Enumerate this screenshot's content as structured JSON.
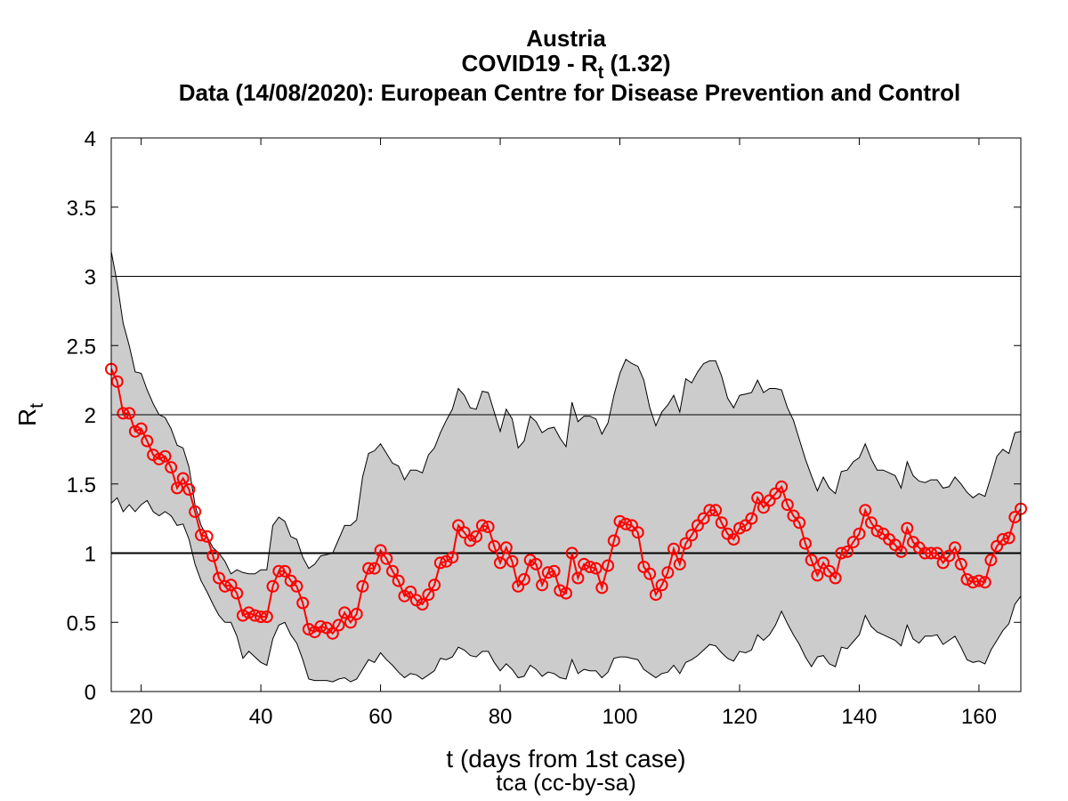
{
  "header": {
    "country": "Austria",
    "metric_prefix": "COVID19 - R",
    "metric_sub": "t",
    "metric_value": " (1.32)",
    "source": "Data (14/08/2020): European Centre for Disease Prevention and Control"
  },
  "axes": {
    "x_label": "t (days from 1st case)",
    "y_label_main": "R",
    "y_label_sub": "t",
    "credit": "tca (cc-by-sa)"
  },
  "colors": {
    "series": "#ff0000",
    "band": "#cccccc",
    "band_edge": "#000000",
    "reference": "#000000"
  },
  "chart_data": {
    "type": "line",
    "title": "Austria / COVID19 - Rt (1.32) / Data (14/08/2020): European Centre for Disease Prevention and Control",
    "xlabel": "t (days from 1st case)",
    "ylabel": "Rt",
    "xlim": [
      15,
      167
    ],
    "ylim": [
      0,
      4
    ],
    "x_ticks": [
      20,
      40,
      60,
      80,
      100,
      120,
      140,
      160
    ],
    "x_tick_labels": [
      "20",
      "40",
      "60",
      "80",
      "100",
      "120",
      "140",
      "160"
    ],
    "y_ticks": [
      0,
      0.5,
      1,
      1.5,
      2,
      2.5,
      3,
      3.5,
      4
    ],
    "y_tick_labels": [
      "0",
      "0.5",
      "1",
      "1.5",
      "2",
      "2.5",
      "3",
      "3.5",
      "4"
    ],
    "reference_lines": [
      1,
      2,
      3
    ],
    "legend": "none",
    "series": [
      {
        "x": [
          15,
          16,
          17,
          18,
          19,
          20,
          21,
          22,
          23,
          24,
          25,
          26,
          27,
          28,
          29,
          30,
          31,
          32,
          33,
          34,
          35,
          36,
          37,
          38,
          39,
          40,
          41,
          42,
          43,
          44,
          45,
          46,
          47,
          48,
          49,
          50,
          51,
          52,
          53,
          54,
          55,
          56,
          57,
          58,
          59,
          60,
          61,
          62,
          63,
          64,
          65,
          66,
          67,
          68,
          69,
          70,
          71,
          72,
          73,
          74,
          75,
          76,
          77,
          78,
          79,
          80,
          81,
          82,
          83,
          84,
          85,
          86,
          87,
          88,
          89,
          90,
          91,
          92,
          93,
          94,
          95,
          96,
          97,
          98,
          99,
          100,
          101,
          102,
          103,
          104,
          105,
          106,
          107,
          108,
          109,
          110,
          111,
          112,
          113,
          114,
          115,
          116,
          117,
          118,
          119,
          120,
          121,
          122,
          123,
          124,
          125,
          126,
          127,
          128,
          129,
          130,
          131,
          132,
          133,
          134,
          135,
          136,
          137,
          138,
          139,
          140,
          141,
          142,
          143,
          144,
          145,
          146,
          147,
          148,
          149,
          150,
          151,
          152,
          153,
          154,
          155,
          156,
          157,
          158,
          159,
          160,
          161,
          162,
          163,
          164,
          165,
          166,
          167
        ],
        "values": [
          2.33,
          2.24,
          2.01,
          2.01,
          1.88,
          1.9,
          1.81,
          1.71,
          1.68,
          1.7,
          1.62,
          1.47,
          1.54,
          1.46,
          1.3,
          1.13,
          1.12,
          0.98,
          0.82,
          0.76,
          0.77,
          0.71,
          0.55,
          0.57,
          0.55,
          0.54,
          0.54,
          0.76,
          0.87,
          0.87,
          0.8,
          0.76,
          0.64,
          0.45,
          0.43,
          0.47,
          0.46,
          0.42,
          0.48,
          0.57,
          0.5,
          0.56,
          0.76,
          0.89,
          0.89,
          1.02,
          0.96,
          0.87,
          0.8,
          0.69,
          0.72,
          0.66,
          0.63,
          0.7,
          0.77,
          0.93,
          0.94,
          0.97,
          1.2,
          1.15,
          1.09,
          1.12,
          1.2,
          1.19,
          1.05,
          0.93,
          1.04,
          0.94,
          0.76,
          0.81,
          0.95,
          0.92,
          0.77,
          0.86,
          0.87,
          0.73,
          0.71,
          1.0,
          0.82,
          0.92,
          0.9,
          0.89,
          0.75,
          0.91,
          1.09,
          1.23,
          1.21,
          1.2,
          1.15,
          0.9,
          0.85,
          0.7,
          0.77,
          0.86,
          1.03,
          0.92,
          1.07,
          1.13,
          1.2,
          1.25,
          1.31,
          1.31,
          1.22,
          1.14,
          1.1,
          1.18,
          1.2,
          1.25,
          1.4,
          1.33,
          1.38,
          1.43,
          1.48,
          1.35,
          1.27,
          1.22,
          1.07,
          0.95,
          0.84,
          0.93,
          0.87,
          0.82,
          1.0,
          1.01,
          1.08,
          1.14,
          1.31,
          1.22,
          1.16,
          1.14,
          1.1,
          1.06,
          1.01,
          1.18,
          1.08,
          1.04,
          1.0,
          1.0,
          1.0,
          0.93,
          0.98,
          1.04,
          0.92,
          0.81,
          0.79,
          0.8,
          0.79,
          0.95,
          1.05,
          1.1,
          1.11,
          1.26,
          1.32
        ]
      }
    ],
    "confidence_band": {
      "x": [
        15,
        16,
        17,
        18,
        19,
        20,
        21,
        22,
        23,
        24,
        25,
        26,
        27,
        28,
        29,
        30,
        31,
        32,
        33,
        34,
        35,
        36,
        37,
        38,
        39,
        40,
        41,
        42,
        43,
        44,
        45,
        46,
        47,
        48,
        49,
        50,
        51,
        52,
        53,
        54,
        55,
        56,
        57,
        58,
        59,
        60,
        61,
        62,
        63,
        64,
        65,
        66,
        67,
        68,
        69,
        70,
        71,
        72,
        73,
        74,
        75,
        76,
        77,
        78,
        79,
        80,
        81,
        82,
        83,
        84,
        85,
        86,
        87,
        88,
        89,
        90,
        91,
        92,
        93,
        94,
        95,
        96,
        97,
        98,
        99,
        100,
        101,
        102,
        103,
        104,
        105,
        106,
        107,
        108,
        109,
        110,
        111,
        112,
        113,
        114,
        115,
        116,
        117,
        118,
        119,
        120,
        121,
        122,
        123,
        124,
        125,
        126,
        127,
        128,
        129,
        130,
        131,
        132,
        133,
        134,
        135,
        136,
        137,
        138,
        139,
        140,
        141,
        142,
        143,
        144,
        145,
        146,
        147,
        148,
        149,
        150,
        151,
        152,
        153,
        154,
        155,
        156,
        157,
        158,
        159,
        160,
        161,
        162,
        163,
        164,
        165,
        166,
        167
      ],
      "upper": [
        3.18,
        2.95,
        2.66,
        2.5,
        2.31,
        2.3,
        2.18,
        2.08,
        2.0,
        1.98,
        1.9,
        1.78,
        1.76,
        1.62,
        1.35,
        1.2,
        1.12,
        1.04,
        1.0,
        0.94,
        0.85,
        0.88,
        0.86,
        0.85,
        0.85,
        0.88,
        0.88,
        1.2,
        1.26,
        1.23,
        1.12,
        1.1,
        0.97,
        0.89,
        0.92,
        0.98,
        0.99,
        1.0,
        1.1,
        1.2,
        1.2,
        1.24,
        1.55,
        1.72,
        1.74,
        1.79,
        1.72,
        1.65,
        1.63,
        1.53,
        1.6,
        1.6,
        1.58,
        1.71,
        1.76,
        1.87,
        1.96,
        2.04,
        2.19,
        2.14,
        2.05,
        2.04,
        2.17,
        2.16,
        2.02,
        1.88,
        2.04,
        1.97,
        1.76,
        1.81,
        1.99,
        1.95,
        1.87,
        1.9,
        1.91,
        1.83,
        1.77,
        2.09,
        1.95,
        1.99,
        1.99,
        1.97,
        1.86,
        1.94,
        2.14,
        2.3,
        2.4,
        2.37,
        2.35,
        2.25,
        2.05,
        1.92,
        2.02,
        2.07,
        2.14,
        2.02,
        2.26,
        2.23,
        2.31,
        2.37,
        2.39,
        2.39,
        2.28,
        2.12,
        2.05,
        2.14,
        2.15,
        2.16,
        2.25,
        2.16,
        2.19,
        2.19,
        2.18,
        2.05,
        1.96,
        1.82,
        1.68,
        1.56,
        1.45,
        1.55,
        1.47,
        1.43,
        1.59,
        1.6,
        1.66,
        1.69,
        1.79,
        1.68,
        1.6,
        1.6,
        1.58,
        1.56,
        1.47,
        1.66,
        1.56,
        1.52,
        1.51,
        1.53,
        1.53,
        1.47,
        1.48,
        1.55,
        1.5,
        1.44,
        1.4,
        1.43,
        1.41,
        1.55,
        1.7,
        1.75,
        1.72,
        1.87,
        1.88
      ],
      "lower": [
        1.36,
        1.4,
        1.3,
        1.35,
        1.3,
        1.35,
        1.38,
        1.3,
        1.27,
        1.3,
        1.27,
        1.2,
        1.21,
        1.1,
        0.92,
        0.8,
        0.72,
        0.63,
        0.55,
        0.5,
        0.5,
        0.4,
        0.24,
        0.29,
        0.25,
        0.21,
        0.19,
        0.38,
        0.48,
        0.5,
        0.41,
        0.35,
        0.23,
        0.09,
        0.08,
        0.08,
        0.08,
        0.07,
        0.09,
        0.1,
        0.07,
        0.09,
        0.16,
        0.23,
        0.21,
        0.28,
        0.23,
        0.19,
        0.14,
        0.1,
        0.13,
        0.12,
        0.09,
        0.12,
        0.15,
        0.24,
        0.23,
        0.25,
        0.32,
        0.3,
        0.26,
        0.25,
        0.29,
        0.29,
        0.21,
        0.15,
        0.2,
        0.16,
        0.1,
        0.11,
        0.19,
        0.16,
        0.11,
        0.14,
        0.13,
        0.1,
        0.09,
        0.23,
        0.13,
        0.16,
        0.15,
        0.15,
        0.1,
        0.14,
        0.24,
        0.25,
        0.25,
        0.24,
        0.23,
        0.16,
        0.13,
        0.1,
        0.13,
        0.14,
        0.19,
        0.13,
        0.21,
        0.23,
        0.26,
        0.3,
        0.34,
        0.33,
        0.28,
        0.24,
        0.22,
        0.29,
        0.28,
        0.3,
        0.41,
        0.37,
        0.41,
        0.48,
        0.58,
        0.49,
        0.41,
        0.34,
        0.25,
        0.18,
        0.25,
        0.26,
        0.2,
        0.18,
        0.32,
        0.31,
        0.36,
        0.41,
        0.55,
        0.47,
        0.43,
        0.41,
        0.39,
        0.37,
        0.33,
        0.48,
        0.38,
        0.35,
        0.4,
        0.4,
        0.41,
        0.34,
        0.37,
        0.4,
        0.32,
        0.23,
        0.21,
        0.22,
        0.2,
        0.3,
        0.37,
        0.44,
        0.49,
        0.63,
        0.69
      ]
    }
  }
}
